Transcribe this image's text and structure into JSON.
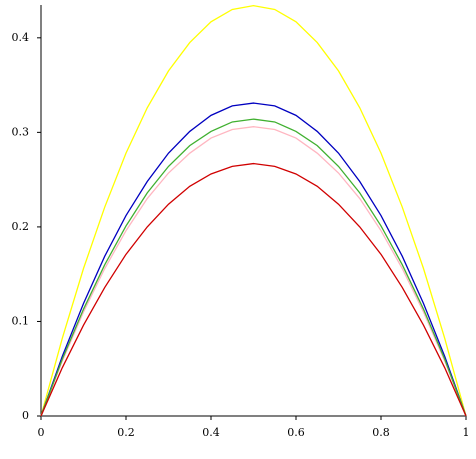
{
  "chart_data": {
    "type": "line",
    "x": [
      0,
      0.05,
      0.1,
      0.15,
      0.2,
      0.25,
      0.3,
      0.35,
      0.4,
      0.45,
      0.5,
      0.55,
      0.6,
      0.65,
      0.7,
      0.75,
      0.8,
      0.85,
      0.9,
      0.95,
      1
    ],
    "series": [
      {
        "color": "#ffff00",
        "values": [
          0,
          0.082,
          0.156,
          0.221,
          0.278,
          0.326,
          0.365,
          0.395,
          0.417,
          0.43,
          0.434,
          0.43,
          0.417,
          0.395,
          0.365,
          0.326,
          0.278,
          0.221,
          0.156,
          0.082,
          0
        ]
      },
      {
        "color": "#0000c0",
        "values": [
          0,
          0.063,
          0.119,
          0.169,
          0.212,
          0.248,
          0.278,
          0.301,
          0.318,
          0.328,
          0.331,
          0.328,
          0.318,
          0.301,
          0.278,
          0.248,
          0.212,
          0.169,
          0.119,
          0.063,
          0
        ]
      },
      {
        "color": "#ffb6c1",
        "values": [
          0,
          0.058,
          0.11,
          0.156,
          0.196,
          0.23,
          0.257,
          0.278,
          0.294,
          0.303,
          0.306,
          0.303,
          0.294,
          0.278,
          0.257,
          0.23,
          0.196,
          0.156,
          0.11,
          0.058,
          0
        ]
      },
      {
        "color": "#40b030",
        "values": [
          0,
          0.06,
          0.113,
          0.16,
          0.201,
          0.236,
          0.264,
          0.286,
          0.301,
          0.311,
          0.314,
          0.311,
          0.301,
          0.286,
          0.264,
          0.236,
          0.201,
          0.16,
          0.113,
          0.06,
          0
        ]
      },
      {
        "color": "#d00000",
        "values": [
          0,
          0.051,
          0.096,
          0.136,
          0.171,
          0.2,
          0.224,
          0.243,
          0.256,
          0.264,
          0.267,
          0.264,
          0.256,
          0.243,
          0.224,
          0.2,
          0.171,
          0.136,
          0.096,
          0.051,
          0
        ]
      }
    ],
    "xlim": [
      0,
      1
    ],
    "ylim": [
      0,
      0.44
    ],
    "xticks": [
      0,
      0.2,
      0.4,
      0.6,
      0.8,
      1
    ],
    "yticks": [
      0,
      0.1,
      0.2,
      0.3,
      0.4
    ]
  }
}
